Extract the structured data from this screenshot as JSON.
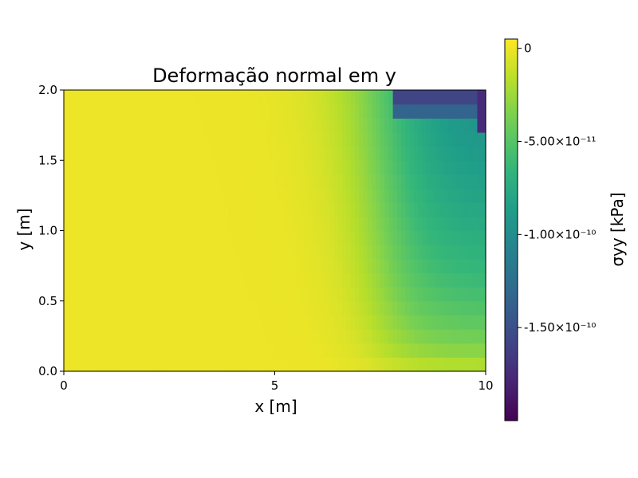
{
  "chart_data": {
    "type": "heatmap",
    "title": "Deformação normal em y",
    "xlabel": "x [m]",
    "ylabel": "y [m]",
    "xlim": [
      0,
      10
    ],
    "ylim": [
      0,
      2
    ],
    "x_ticks": [
      {
        "value": 0,
        "label": "0"
      },
      {
        "value": 5,
        "label": "5"
      },
      {
        "value": 10,
        "label": "10"
      }
    ],
    "y_ticks": [
      {
        "value": 0.0,
        "label": "0.0"
      },
      {
        "value": 0.5,
        "label": "0.5"
      },
      {
        "value": 1.0,
        "label": "1.0"
      },
      {
        "value": 1.5,
        "label": "1.5"
      },
      {
        "value": 2.0,
        "label": "2.0"
      }
    ],
    "grid": false,
    "colormap": "viridis",
    "grid_shape": {
      "nx": 100,
      "ny": 20
    },
    "colorbar": {
      "label": "σyy [kPa]",
      "range": [
        -2e-10,
        5e-12
      ],
      "ticks": [
        {
          "value": 0,
          "label": "0"
        },
        {
          "value": -5e-11,
          "label": "-5.00×10⁻¹¹"
        },
        {
          "value": -1e-10,
          "label": "-1.00×10⁻¹⁰"
        },
        {
          "value": -1.5e-10,
          "label": "-1.50×10⁻¹⁰"
        }
      ]
    }
  }
}
